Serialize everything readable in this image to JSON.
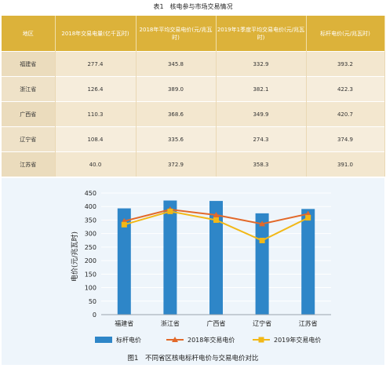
{
  "table": {
    "caption": "表1　核电参与市场交易情况",
    "headers": [
      "地区",
      "2018年交易电量(亿千瓦时)",
      "2018年平均交易电价(元/兆瓦时)",
      "2019年1季度平均交易电价(元/兆瓦时)",
      "标杆电价(元/兆瓦时)"
    ],
    "rows": [
      [
        "福建省",
        "277.4",
        "345.8",
        "332.9",
        "393.2"
      ],
      [
        "浙江省",
        "126.4",
        "389.0",
        "382.1",
        "422.3"
      ],
      [
        "广西省",
        "110.3",
        "368.6",
        "349.9",
        "420.7"
      ],
      [
        "辽宁省",
        "108.4",
        "335.6",
        "274.3",
        "374.9"
      ],
      [
        "江苏省",
        "40.0",
        "372.9",
        "358.3",
        "391.0"
      ]
    ]
  },
  "chart_data": {
    "type": "bar",
    "title": "图1　不同省区核电标杆电价与交易电价对比",
    "ylabel": "电价(元/兆瓦时)",
    "categories": [
      "福建省",
      "浙江省",
      "广西省",
      "辽宁省",
      "江苏省"
    ],
    "ylim": [
      0,
      450
    ],
    "yticks": [
      "0",
      "50",
      "100",
      "150",
      "200",
      "250",
      "300",
      "350",
      "400",
      "450"
    ],
    "grid": true,
    "legend_position": "bottom",
    "series": [
      {
        "name": "标杆电价",
        "kind": "bar",
        "color": "#2e86c8",
        "values": [
          393.2,
          422.3,
          420.7,
          374.9,
          391.0
        ]
      },
      {
        "name": "2018年交易电价",
        "kind": "line",
        "color": "#e2692a",
        "values": [
          345.8,
          389.0,
          368.6,
          335.6,
          372.9
        ]
      },
      {
        "name": "2019年交易电价",
        "kind": "line",
        "color": "#f2b817",
        "values": [
          332.9,
          382.1,
          349.9,
          274.3,
          358.3
        ]
      }
    ]
  }
}
